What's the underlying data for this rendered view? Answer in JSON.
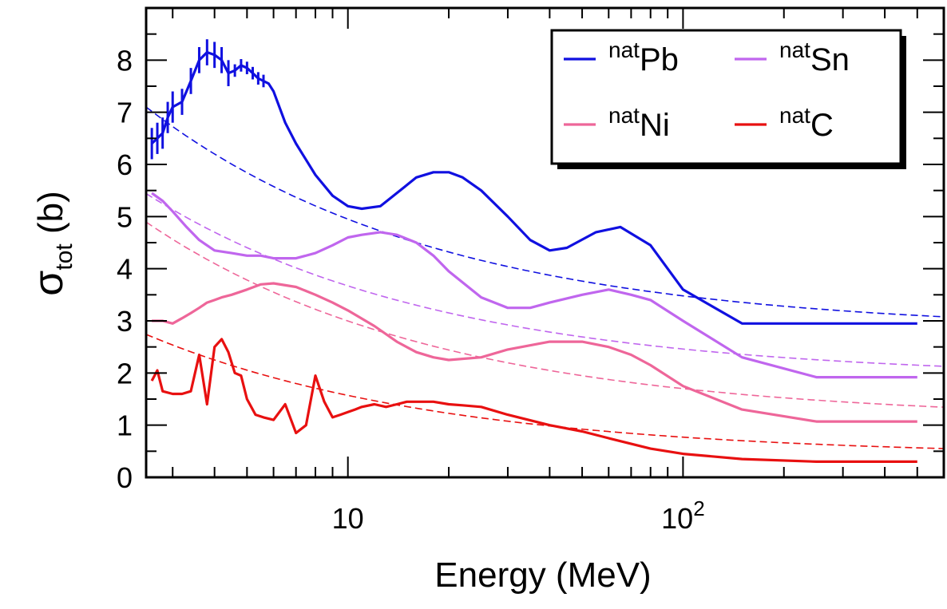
{
  "chart_data": {
    "type": "line",
    "title": "",
    "xlabel": "Energy (MeV)",
    "ylabel_main": "σ",
    "ylabel_sub": "tot",
    "ylabel_unit": " (b)",
    "xscale": "log",
    "xlim": [
      2.5,
      600
    ],
    "ylim": [
      0,
      9
    ],
    "yticks": [
      "0",
      "1",
      "2",
      "3",
      "4",
      "5",
      "6",
      "7",
      "8"
    ],
    "xtick_major": [
      {
        "value": 10,
        "base": "10",
        "exp": ""
      },
      {
        "value": 100,
        "base": "10",
        "exp": "2"
      }
    ],
    "legend_position": "top-right",
    "series": [
      {
        "name": "Pb",
        "sup": "nat",
        "color": "#1010e0",
        "x": [
          2.6,
          2.7,
          2.8,
          2.9,
          3.0,
          3.2,
          3.4,
          3.6,
          3.8,
          4.0,
          4.2,
          4.4,
          4.6,
          4.8,
          5.0,
          5.2,
          5.4,
          5.6,
          5.8,
          6.0,
          6.5,
          7.0,
          8.0,
          9.0,
          10.0,
          11.0,
          12.5,
          14.0,
          16.0,
          18.0,
          20.0,
          22.0,
          25.0,
          30.0,
          35.0,
          40.0,
          45.0,
          55.0,
          65.0,
          80.0,
          100.0,
          150.0,
          250.0,
          500.0
        ],
        "y": [
          6.4,
          6.5,
          6.6,
          6.9,
          7.1,
          7.2,
          7.6,
          8.0,
          8.15,
          8.1,
          8.0,
          7.75,
          7.8,
          7.9,
          7.85,
          7.75,
          7.65,
          7.6,
          7.55,
          7.4,
          6.8,
          6.4,
          5.8,
          5.4,
          5.2,
          5.15,
          5.2,
          5.45,
          5.75,
          5.85,
          5.85,
          5.75,
          5.5,
          5.0,
          4.55,
          4.35,
          4.4,
          4.7,
          4.8,
          4.45,
          3.6,
          2.95,
          2.95,
          2.95
        ],
        "err_upto": 5.6,
        "fit": {
          "a": 2.8,
          "b": 6.8,
          "p": 0.5
        }
      },
      {
        "name": "Sn",
        "sup": "nat",
        "color": "#c066ee",
        "x": [
          2.6,
          2.8,
          3.0,
          3.3,
          3.6,
          4.0,
          4.5,
          5.0,
          5.5,
          6.0,
          7.0,
          8.0,
          9.0,
          10.0,
          11.0,
          12.5,
          14.0,
          16.0,
          18.0,
          20.0,
          25.0,
          30.0,
          35.0,
          40.0,
          50.0,
          60.0,
          70.0,
          80.0,
          100.0,
          150.0,
          250.0,
          500.0
        ],
        "y": [
          5.45,
          5.3,
          5.1,
          4.8,
          4.55,
          4.35,
          4.3,
          4.25,
          4.25,
          4.2,
          4.2,
          4.3,
          4.45,
          4.6,
          4.65,
          4.7,
          4.65,
          4.5,
          4.25,
          3.95,
          3.45,
          3.25,
          3.25,
          3.35,
          3.5,
          3.6,
          3.5,
          3.4,
          3.0,
          2.3,
          1.92,
          1.92
        ],
        "fit": {
          "a": 1.9,
          "b": 5.6,
          "p": 0.5
        }
      },
      {
        "name": "Ni",
        "sup": "nat",
        "color": "#ee6699",
        "x": [
          2.6,
          2.8,
          3.0,
          3.2,
          3.4,
          3.6,
          3.8,
          4.0,
          4.2,
          4.5,
          5.0,
          5.5,
          6.0,
          7.0,
          8.0,
          9.0,
          10.0,
          12.0,
          14.0,
          16.0,
          18.0,
          20.0,
          25.0,
          30.0,
          40.0,
          50.0,
          60.0,
          70.0,
          80.0,
          100.0,
          150.0,
          250.0,
          500.0
        ],
        "y": [
          3.0,
          3.0,
          2.95,
          3.05,
          3.15,
          3.25,
          3.35,
          3.4,
          3.45,
          3.5,
          3.6,
          3.7,
          3.72,
          3.65,
          3.5,
          3.35,
          3.2,
          2.9,
          2.6,
          2.4,
          2.3,
          2.25,
          2.3,
          2.45,
          2.6,
          2.6,
          2.5,
          2.35,
          2.15,
          1.75,
          1.3,
          1.07,
          1.07
        ],
        "fit": {
          "a": 1.1,
          "b": 6.0,
          "p": 0.5
        }
      },
      {
        "name": "C",
        "sup": "nat",
        "color": "#e81010",
        "x": [
          2.6,
          2.7,
          2.8,
          3.0,
          3.2,
          3.4,
          3.6,
          3.8,
          4.0,
          4.2,
          4.4,
          4.6,
          4.8,
          5.0,
          5.3,
          5.6,
          6.0,
          6.5,
          7.0,
          7.5,
          8.0,
          8.5,
          9.0,
          9.5,
          10.0,
          10.5,
          11.0,
          12.0,
          13.0,
          14.0,
          15.0,
          16.0,
          17.0,
          18.0,
          20.0,
          22.0,
          25.0,
          30.0,
          40.0,
          50.0,
          60.0,
          80.0,
          100.0,
          150.0,
          250.0,
          500.0
        ],
        "y": [
          1.85,
          2.05,
          1.65,
          1.6,
          1.6,
          1.65,
          2.35,
          1.4,
          2.5,
          2.65,
          2.4,
          2.0,
          1.95,
          1.5,
          1.2,
          1.15,
          1.1,
          1.4,
          0.85,
          1.0,
          1.95,
          1.45,
          1.15,
          1.2,
          1.25,
          1.3,
          1.35,
          1.4,
          1.35,
          1.4,
          1.45,
          1.45,
          1.45,
          1.45,
          1.4,
          1.38,
          1.35,
          1.2,
          1.0,
          0.88,
          0.75,
          0.55,
          0.45,
          0.35,
          0.3,
          0.3
        ],
        "fit": {
          "a": 0.4,
          "b": 3.7,
          "p": 0.5
        }
      }
    ]
  }
}
